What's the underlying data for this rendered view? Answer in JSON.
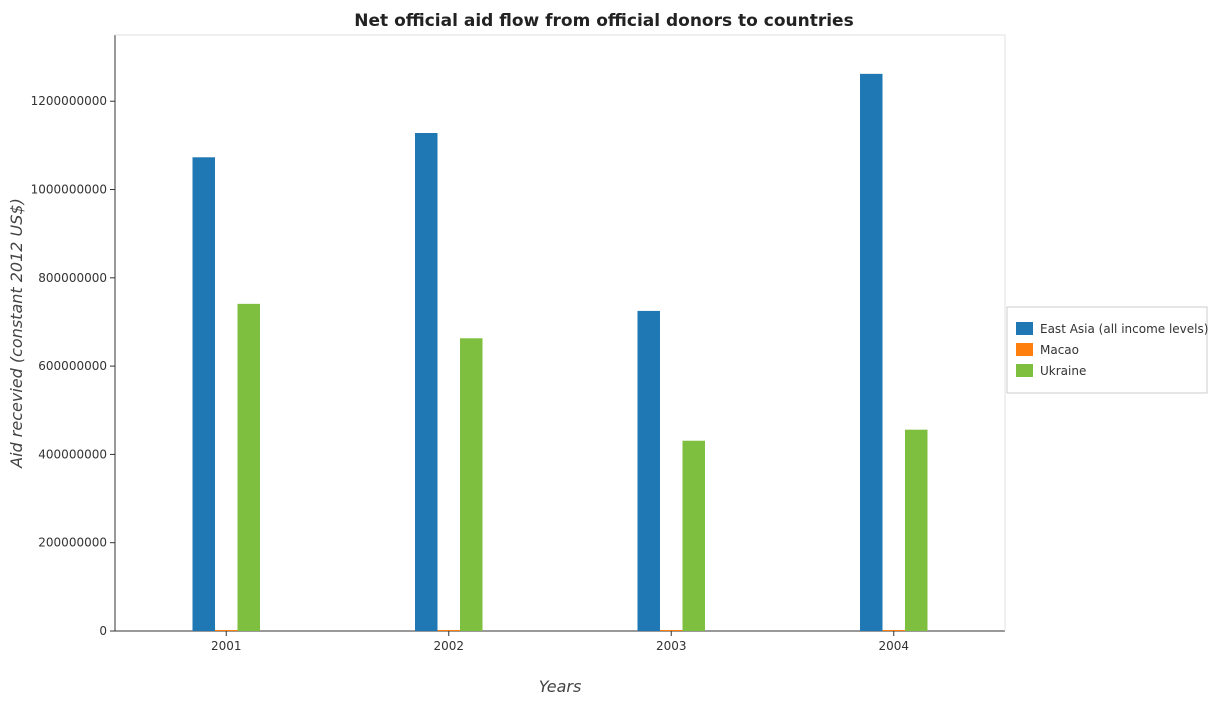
{
  "chart_data": {
    "type": "bar",
    "title": "Net official aid flow from official donors to countries",
    "xlabel": "Years",
    "ylabel": "Aid recevied (constant 2012 US$)",
    "categories": [
      "2001",
      "2002",
      "2003",
      "2004"
    ],
    "ylim": [
      0,
      1350000000
    ],
    "yticks": [
      0,
      200000000,
      400000000,
      600000000,
      800000000,
      1000000000,
      1200000000
    ],
    "ytick_labels": [
      "0",
      "200000000",
      "400000000",
      "600000000",
      "800000000",
      "1000000000",
      "1200000000"
    ],
    "series": [
      {
        "name": "East Asia (all income levels)",
        "color": "#1f77b4",
        "values": [
          1073000000,
          1128000000,
          725000000,
          1262000000
        ]
      },
      {
        "name": "Macao",
        "color": "#ff7f0e",
        "values": [
          700000,
          1800000,
          500000,
          400000
        ]
      },
      {
        "name": "Ukraine",
        "color": "#7fbf3f",
        "values": [
          741000000,
          663000000,
          431000000,
          456000000
        ]
      }
    ],
    "legend_position": "right",
    "grid": false
  }
}
